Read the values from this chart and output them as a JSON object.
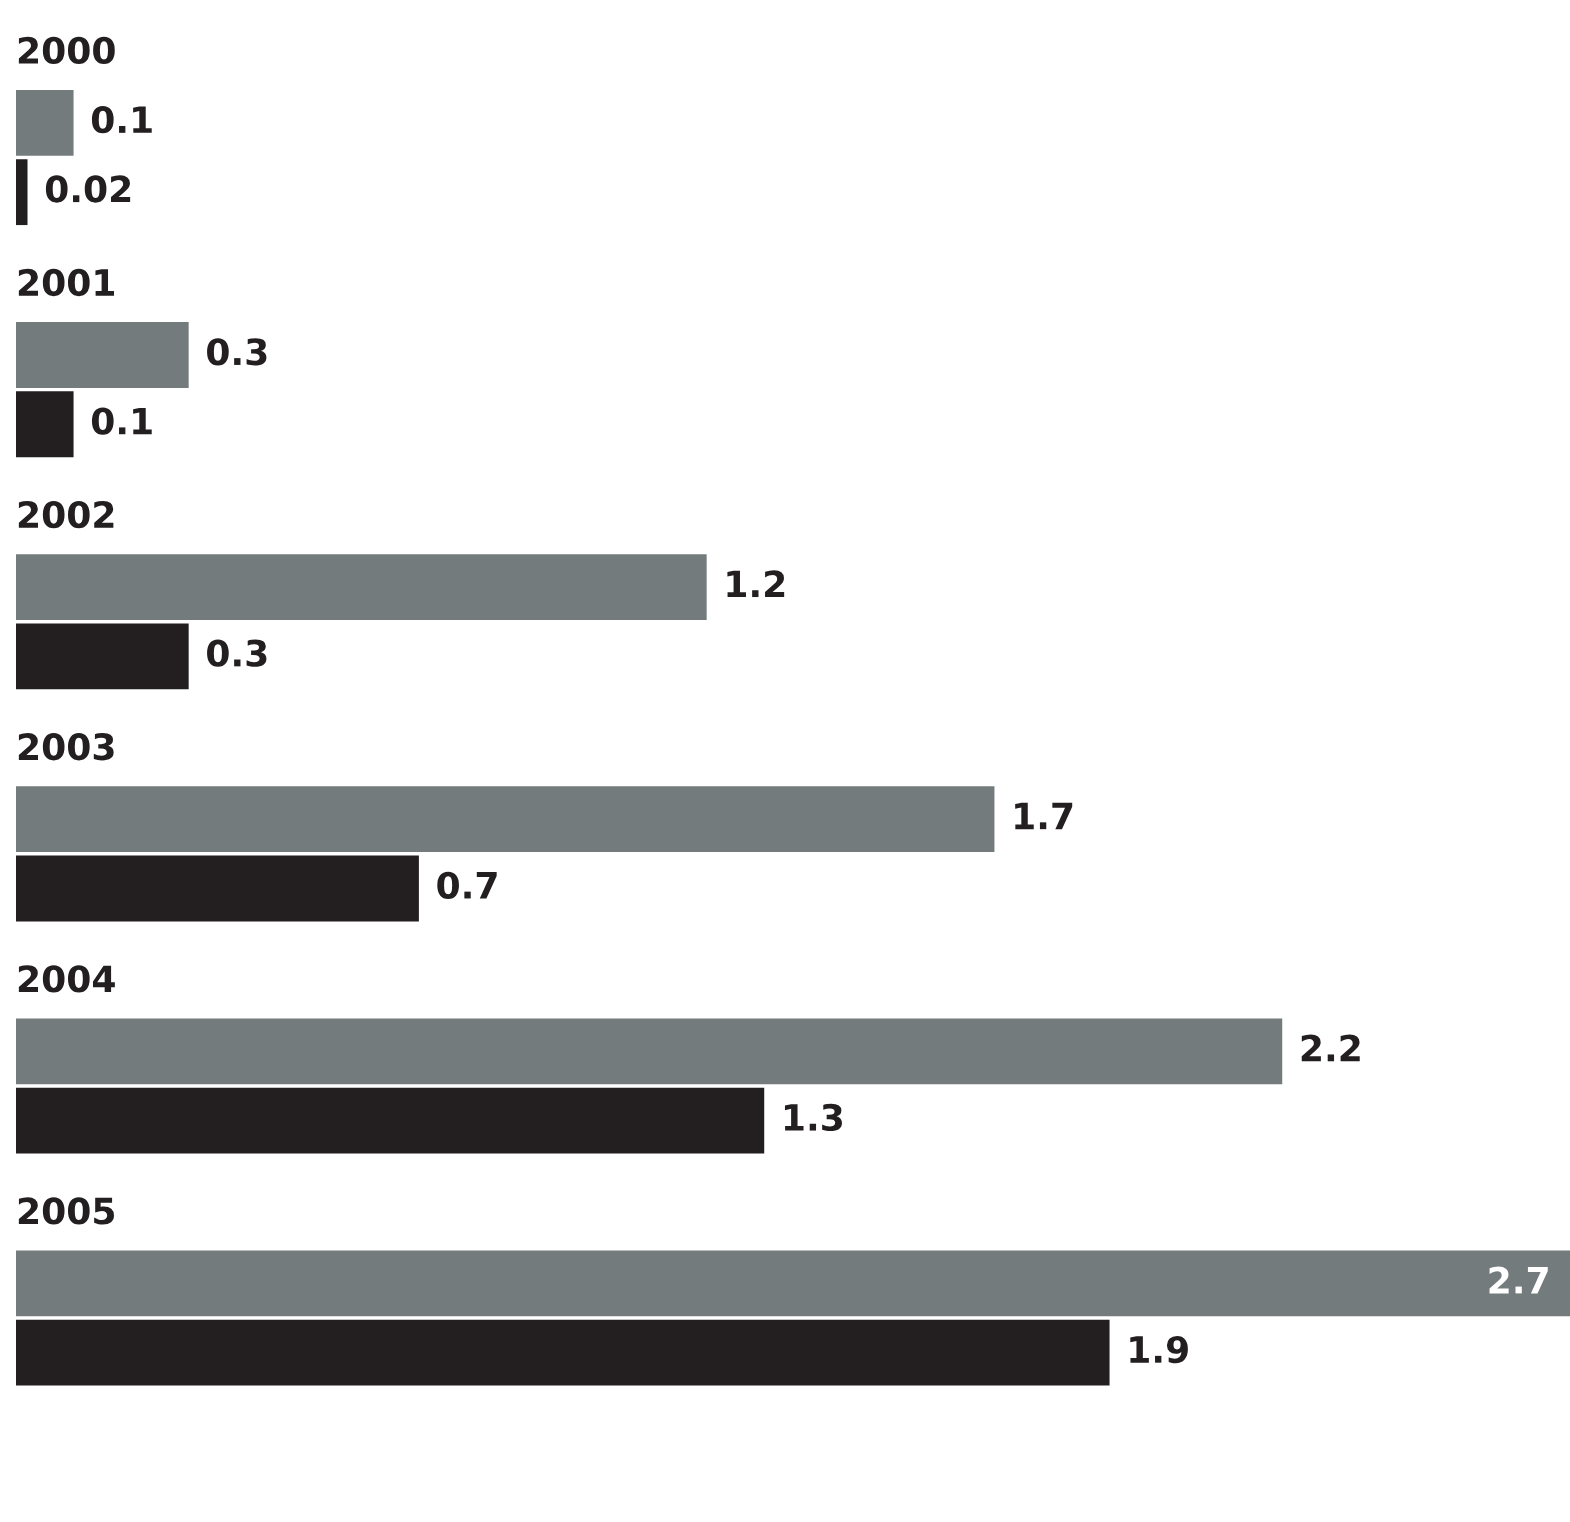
{
  "chart_data": {
    "type": "bar",
    "orientation": "horizontal",
    "categories": [
      "2000",
      "2001",
      "2002",
      "2003",
      "2004",
      "2005"
    ],
    "series": [
      {
        "color": "#737b7c",
        "values": [
          0.1,
          0.3,
          1.2,
          1.7,
          2.2,
          2.7
        ]
      },
      {
        "color": "#231f20",
        "values": [
          0.02,
          0.1,
          0.3,
          0.7,
          1.3,
          1.9
        ]
      }
    ],
    "data_labels": true
  }
}
